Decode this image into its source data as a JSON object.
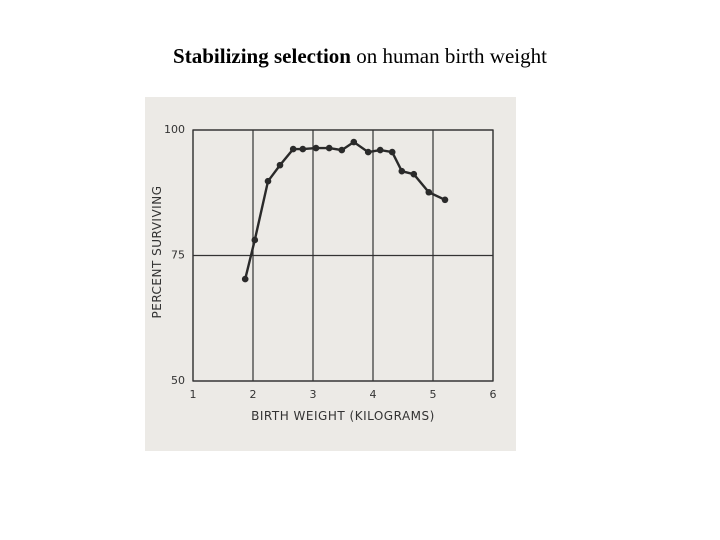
{
  "chart_data": {
    "type": "line",
    "title": "Stabilizing selection",
    "subtitle": "on human birth weight",
    "x_label": "BIRTH WEIGHT (KILOGRAMS)",
    "y_label": "PERCENT SURVIVING",
    "x": [
      1.87,
      2.03,
      2.25,
      2.45,
      2.67,
      2.83,
      3.05,
      3.27,
      3.48,
      3.68,
      3.92,
      4.12,
      4.32,
      4.48,
      4.68,
      4.93,
      5.2
    ],
    "values": [
      70.3,
      78.1,
      89.8,
      93.0,
      96.2,
      96.2,
      96.4,
      96.4,
      96.0,
      97.6,
      95.6,
      96.0,
      95.6,
      91.8,
      91.2,
      87.6,
      86.1
    ],
    "color": "#2a2a2a",
    "xlim": [
      1,
      6
    ],
    "xticks": [
      1,
      2,
      3,
      4,
      5,
      6
    ],
    "ylim": [
      50,
      100
    ],
    "yticks": [
      50,
      75,
      100
    ],
    "grid": true
  }
}
